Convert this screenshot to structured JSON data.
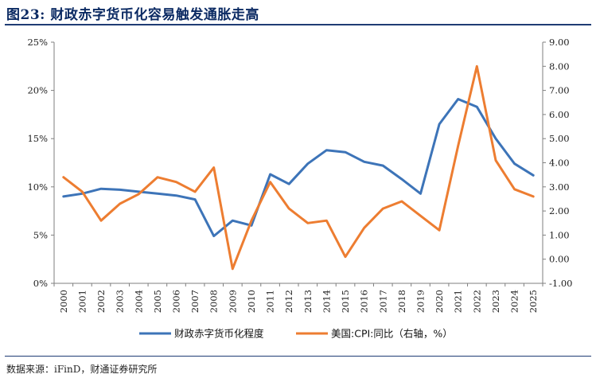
{
  "title": "图23: 财政赤字货币化容易触发通胀走高",
  "source": "数据来源：iFinD，财通证券研究所",
  "chart_data": {
    "type": "line",
    "x": [
      "2000",
      "2001",
      "2002",
      "2003",
      "2004",
      "2005",
      "2006",
      "2007",
      "2008",
      "2009",
      "2010",
      "2011",
      "2012",
      "2013",
      "2014",
      "2015",
      "2016",
      "2017",
      "2018",
      "2019",
      "2020",
      "2021",
      "2022",
      "2023",
      "2024",
      "2025"
    ],
    "left_axis": {
      "min": 0,
      "max": 25,
      "ticks": [
        "0%",
        "5%",
        "10%",
        "15%",
        "20%",
        "25%"
      ]
    },
    "right_axis": {
      "min": -1,
      "max": 9,
      "ticks": [
        "-1.00",
        "0.00",
        "1.00",
        "2.00",
        "3.00",
        "4.00",
        "5.00",
        "6.00",
        "7.00",
        "8.00",
        "9.00"
      ]
    },
    "series": [
      {
        "name": "财政赤字货币化程度",
        "axis": "left",
        "color": "#3d74b8",
        "values": [
          9.0,
          9.3,
          9.8,
          9.7,
          9.5,
          9.3,
          9.1,
          8.7,
          4.9,
          6.5,
          6.0,
          11.3,
          10.3,
          12.4,
          13.8,
          13.6,
          12.6,
          12.2,
          10.8,
          9.3,
          16.5,
          19.1,
          18.3,
          15.0,
          12.4,
          11.2
        ]
      },
      {
        "name": "美国:CPI:同比（右轴，%）",
        "axis": "right",
        "color": "#ed7d31",
        "values": [
          3.4,
          2.8,
          1.6,
          2.3,
          2.7,
          3.4,
          3.2,
          2.8,
          3.8,
          -0.4,
          1.6,
          3.2,
          2.1,
          1.5,
          1.6,
          0.1,
          1.3,
          2.1,
          2.4,
          1.8,
          1.2,
          4.7,
          8.0,
          4.1,
          2.9,
          2.6
        ]
      }
    ]
  }
}
